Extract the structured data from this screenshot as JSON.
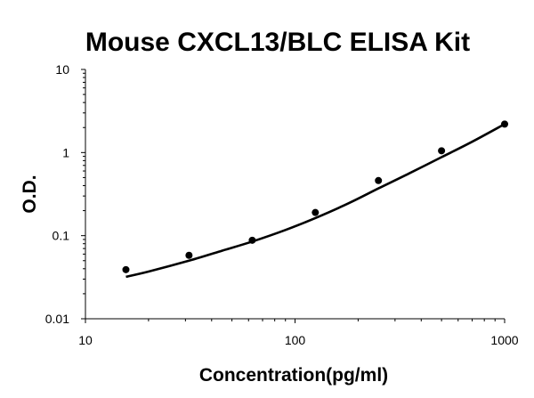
{
  "chart_data": {
    "type": "scatter",
    "title": "Mouse CXCL13/BLC ELISA Kit",
    "xlabel": "Concentration(pg/ml)",
    "ylabel": "O.D.",
    "xscale": "log",
    "yscale": "log",
    "xlim": [
      10,
      1000
    ],
    "ylim": [
      0.01,
      10
    ],
    "x_ticks": [
      {
        "value": 10,
        "label": "10"
      },
      {
        "value": 100,
        "label": "100"
      },
      {
        "value": 1000,
        "label": "1000"
      }
    ],
    "y_ticks": [
      {
        "value": 0.01,
        "label": "0.01"
      },
      {
        "value": 0.1,
        "label": "0.1"
      },
      {
        "value": 1,
        "label": "1"
      },
      {
        "value": 10,
        "label": "10"
      }
    ],
    "grid": false,
    "legend": "none",
    "series": [
      {
        "type": "scatter",
        "x": [
          15.6,
          31.2,
          62.5,
          125,
          250,
          500,
          1000
        ],
        "y": [
          0.039,
          0.058,
          0.088,
          0.19,
          0.46,
          1.05,
          2.2
        ],
        "color": "#000000"
      },
      {
        "type": "line",
        "fit": "smooth",
        "x": [
          15.6,
          20,
          31.2,
          45,
          62.5,
          90,
          125,
          180,
          250,
          350,
          500,
          700,
          1000
        ],
        "y": [
          0.032,
          0.037,
          0.05,
          0.066,
          0.085,
          0.117,
          0.163,
          0.245,
          0.37,
          0.56,
          0.88,
          1.35,
          2.2
        ],
        "color": "#000000"
      }
    ]
  }
}
